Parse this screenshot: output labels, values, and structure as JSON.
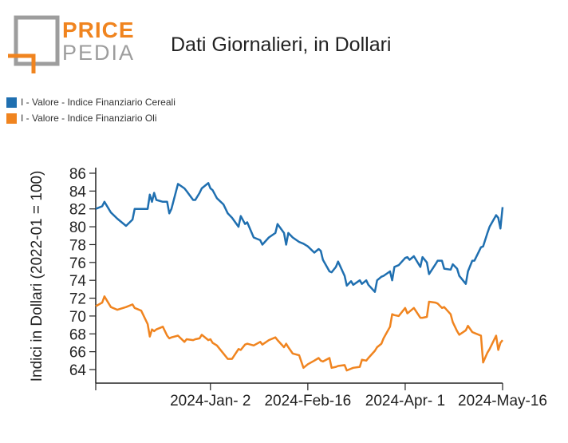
{
  "logo": {
    "line1": "PRICE",
    "line2": "PEDIA"
  },
  "colors": {
    "orange": "#f0841f",
    "gray": "#9d9d9d",
    "blue": "#1f6fb0"
  },
  "chart_data": {
    "type": "line",
    "title": "Dati Giornalieri, in Dollari",
    "ylabel": "Indici in Dollari (2022-01 = 100)",
    "xlabel": "",
    "ylim": [
      62,
      86
    ],
    "yticks": [
      64,
      66,
      68,
      70,
      72,
      74,
      76,
      78,
      80,
      82,
      84,
      86
    ],
    "x_range": [
      "2023-11-10",
      "2024-05-16"
    ],
    "xticks": [
      {
        "date": "2024-01-02",
        "label": "2024-Jan- 2"
      },
      {
        "date": "2024-02-16",
        "label": "2024-Feb-16"
      },
      {
        "date": "2024-04-01",
        "label": "2024-Apr- 1"
      },
      {
        "date": "2024-05-16",
        "label": "2024-May-16"
      }
    ],
    "legend_position": "top-left",
    "grid": false,
    "series": [
      {
        "name": "I - Valore - Indice Finanziario Cereali",
        "color": "#1f6fb0",
        "points": [
          [
            "2023-11-10",
            82.0
          ],
          [
            "2023-11-13",
            82.3
          ],
          [
            "2023-11-14",
            82.8
          ],
          [
            "2023-11-17",
            81.6
          ],
          [
            "2023-11-20",
            80.9
          ],
          [
            "2023-11-24",
            80.1
          ],
          [
            "2023-11-27",
            80.8
          ],
          [
            "2023-11-28",
            82.0
          ],
          [
            "2023-12-01",
            82.0
          ],
          [
            "2023-12-04",
            82.0
          ],
          [
            "2023-12-05",
            83.6
          ],
          [
            "2023-12-06",
            82.8
          ],
          [
            "2023-12-07",
            83.8
          ],
          [
            "2023-12-08",
            83.0
          ],
          [
            "2023-12-11",
            82.8
          ],
          [
            "2023-12-13",
            82.8
          ],
          [
            "2023-12-14",
            81.5
          ],
          [
            "2023-12-15",
            82.0
          ],
          [
            "2023-12-18",
            84.8
          ],
          [
            "2023-12-21",
            84.3
          ],
          [
            "2023-12-22",
            84.0
          ],
          [
            "2023-12-25",
            83.0
          ],
          [
            "2023-12-26",
            83.0
          ],
          [
            "2023-12-28",
            83.8
          ],
          [
            "2023-12-29",
            84.3
          ],
          [
            "2024-01-01",
            84.9
          ],
          [
            "2024-01-02",
            84.3
          ],
          [
            "2024-01-03",
            84.1
          ],
          [
            "2024-01-05",
            83.2
          ],
          [
            "2024-01-08",
            82.5
          ],
          [
            "2024-01-10",
            81.5
          ],
          [
            "2024-01-12",
            81.0
          ],
          [
            "2024-01-15",
            80.0
          ],
          [
            "2024-01-16",
            81.2
          ],
          [
            "2024-01-18",
            80.3
          ],
          [
            "2024-01-19",
            80.5
          ],
          [
            "2024-01-22",
            78.8
          ],
          [
            "2024-01-25",
            78.5
          ],
          [
            "2024-01-26",
            78.0
          ],
          [
            "2024-01-29",
            78.8
          ],
          [
            "2024-02-01",
            79.3
          ],
          [
            "2024-02-02",
            80.3
          ],
          [
            "2024-02-05",
            79.3
          ],
          [
            "2024-02-06",
            78.0
          ],
          [
            "2024-02-07",
            79.3
          ],
          [
            "2024-02-09",
            78.8
          ],
          [
            "2024-02-12",
            78.3
          ],
          [
            "2024-02-14",
            78.1
          ],
          [
            "2024-02-16",
            77.8
          ],
          [
            "2024-02-19",
            77.1
          ],
          [
            "2024-02-21",
            77.5
          ],
          [
            "2024-02-22",
            77.3
          ],
          [
            "2024-02-23",
            76.3
          ],
          [
            "2024-02-26",
            75.0
          ],
          [
            "2024-02-27",
            74.9
          ],
          [
            "2024-02-29",
            75.5
          ],
          [
            "2024-03-01",
            76.1
          ],
          [
            "2024-03-04",
            74.5
          ],
          [
            "2024-03-05",
            73.4
          ],
          [
            "2024-03-07",
            73.9
          ],
          [
            "2024-03-08",
            73.5
          ],
          [
            "2024-03-11",
            74.0
          ],
          [
            "2024-03-12",
            73.6
          ],
          [
            "2024-03-14",
            74.0
          ],
          [
            "2024-03-15",
            73.5
          ],
          [
            "2024-03-18",
            72.7
          ],
          [
            "2024-03-19",
            74.0
          ],
          [
            "2024-03-21",
            74.4
          ],
          [
            "2024-03-22",
            74.5
          ],
          [
            "2024-03-25",
            75.0
          ],
          [
            "2024-03-26",
            74.0
          ],
          [
            "2024-03-27",
            75.5
          ],
          [
            "2024-03-29",
            75.7
          ],
          [
            "2024-04-01",
            76.5
          ],
          [
            "2024-04-02",
            76.6
          ],
          [
            "2024-04-03",
            76.3
          ],
          [
            "2024-04-05",
            76.7
          ],
          [
            "2024-04-08",
            75.5
          ],
          [
            "2024-04-09",
            76.6
          ],
          [
            "2024-04-11",
            76.0
          ],
          [
            "2024-04-12",
            74.7
          ],
          [
            "2024-04-15",
            75.8
          ],
          [
            "2024-04-16",
            76.2
          ],
          [
            "2024-04-18",
            76.2
          ],
          [
            "2024-04-19",
            75.3
          ],
          [
            "2024-04-22",
            75.2
          ],
          [
            "2024-04-23",
            75.8
          ],
          [
            "2024-04-25",
            75.3
          ],
          [
            "2024-04-26",
            74.5
          ],
          [
            "2024-04-29",
            73.6
          ],
          [
            "2024-04-30",
            75.0
          ],
          [
            "2024-05-02",
            76.2
          ],
          [
            "2024-05-03",
            76.2
          ],
          [
            "2024-05-06",
            77.7
          ],
          [
            "2024-05-07",
            77.8
          ],
          [
            "2024-05-09",
            79.3
          ],
          [
            "2024-05-10",
            80.0
          ],
          [
            "2024-05-13",
            81.3
          ],
          [
            "2024-05-14",
            81.0
          ],
          [
            "2024-05-15",
            79.8
          ],
          [
            "2024-05-16",
            82.2
          ]
        ]
      },
      {
        "name": "I - Valore - Indice Finanziario Oli",
        "color": "#f0841f",
        "points": [
          [
            "2023-11-10",
            71.1
          ],
          [
            "2023-11-13",
            71.5
          ],
          [
            "2023-11-14",
            72.2
          ],
          [
            "2023-11-17",
            71.0
          ],
          [
            "2023-11-20",
            70.7
          ],
          [
            "2023-11-24",
            71.0
          ],
          [
            "2023-11-27",
            71.3
          ],
          [
            "2023-11-28",
            70.9
          ],
          [
            "2023-12-01",
            70.6
          ],
          [
            "2023-12-04",
            69.1
          ],
          [
            "2023-12-05",
            67.7
          ],
          [
            "2023-12-06",
            68.5
          ],
          [
            "2023-12-07",
            68.3
          ],
          [
            "2023-12-08",
            68.5
          ],
          [
            "2023-12-11",
            68.8
          ],
          [
            "2023-12-13",
            67.8
          ],
          [
            "2023-12-14",
            67.5
          ],
          [
            "2023-12-15",
            67.6
          ],
          [
            "2023-12-18",
            67.8
          ],
          [
            "2023-12-21",
            67.1
          ],
          [
            "2023-12-22",
            67.4
          ],
          [
            "2023-12-25",
            67.3
          ],
          [
            "2023-12-26",
            67.4
          ],
          [
            "2023-12-28",
            67.5
          ],
          [
            "2023-12-29",
            67.9
          ],
          [
            "2024-01-01",
            67.3
          ],
          [
            "2024-01-02",
            67.4
          ],
          [
            "2024-01-03",
            67.0
          ],
          [
            "2024-01-05",
            66.7
          ],
          [
            "2024-01-08",
            65.8
          ],
          [
            "2024-01-10",
            65.2
          ],
          [
            "2024-01-12",
            65.2
          ],
          [
            "2024-01-15",
            66.3
          ],
          [
            "2024-01-16",
            66.2
          ],
          [
            "2024-01-18",
            66.8
          ],
          [
            "2024-01-19",
            66.9
          ],
          [
            "2024-01-22",
            66.7
          ],
          [
            "2024-01-25",
            67.1
          ],
          [
            "2024-01-26",
            66.8
          ],
          [
            "2024-01-29",
            67.3
          ],
          [
            "2024-02-01",
            67.6
          ],
          [
            "2024-02-02",
            67.3
          ],
          [
            "2024-02-05",
            66.5
          ],
          [
            "2024-02-06",
            66.9
          ],
          [
            "2024-02-07",
            66.5
          ],
          [
            "2024-02-09",
            65.8
          ],
          [
            "2024-02-12",
            65.6
          ],
          [
            "2024-02-14",
            64.2
          ],
          [
            "2024-02-16",
            64.6
          ],
          [
            "2024-02-19",
            65.0
          ],
          [
            "2024-02-21",
            65.3
          ],
          [
            "2024-02-22",
            65.0
          ],
          [
            "2024-02-23",
            64.9
          ],
          [
            "2024-02-26",
            65.3
          ],
          [
            "2024-02-27",
            64.2
          ],
          [
            "2024-02-29",
            64.3
          ],
          [
            "2024-03-01",
            64.4
          ],
          [
            "2024-03-04",
            64.5
          ],
          [
            "2024-03-05",
            63.9
          ],
          [
            "2024-03-07",
            64.1
          ],
          [
            "2024-03-08",
            64.2
          ],
          [
            "2024-03-11",
            64.3
          ],
          [
            "2024-03-12",
            65.1
          ],
          [
            "2024-03-14",
            65.0
          ],
          [
            "2024-03-15",
            65.3
          ],
          [
            "2024-03-18",
            66.1
          ],
          [
            "2024-03-19",
            66.5
          ],
          [
            "2024-03-21",
            66.9
          ],
          [
            "2024-03-22",
            67.5
          ],
          [
            "2024-03-25",
            68.8
          ],
          [
            "2024-03-26",
            70.2
          ],
          [
            "2024-03-27",
            70.1
          ],
          [
            "2024-03-29",
            70.0
          ],
          [
            "2024-04-01",
            70.9
          ],
          [
            "2024-04-02",
            70.3
          ],
          [
            "2024-04-03",
            70.5
          ],
          [
            "2024-04-05",
            70.9
          ],
          [
            "2024-04-08",
            69.8
          ],
          [
            "2024-04-09",
            69.8
          ],
          [
            "2024-04-11",
            69.9
          ],
          [
            "2024-04-12",
            71.6
          ],
          [
            "2024-04-15",
            71.5
          ],
          [
            "2024-04-16",
            71.4
          ],
          [
            "2024-04-18",
            70.9
          ],
          [
            "2024-04-19",
            71.0
          ],
          [
            "2024-04-22",
            70.2
          ],
          [
            "2024-04-23",
            69.3
          ],
          [
            "2024-04-25",
            68.3
          ],
          [
            "2024-04-26",
            67.9
          ],
          [
            "2024-04-29",
            68.4
          ],
          [
            "2024-04-30",
            68.9
          ],
          [
            "2024-05-02",
            68.2
          ],
          [
            "2024-05-03",
            68.1
          ],
          [
            "2024-05-06",
            67.8
          ],
          [
            "2024-05-07",
            64.8
          ],
          [
            "2024-05-09",
            65.9
          ],
          [
            "2024-05-10",
            66.3
          ],
          [
            "2024-05-13",
            67.8
          ],
          [
            "2024-05-14",
            66.2
          ],
          [
            "2024-05-15",
            67.0
          ],
          [
            "2024-05-16",
            67.3
          ]
        ]
      }
    ]
  }
}
